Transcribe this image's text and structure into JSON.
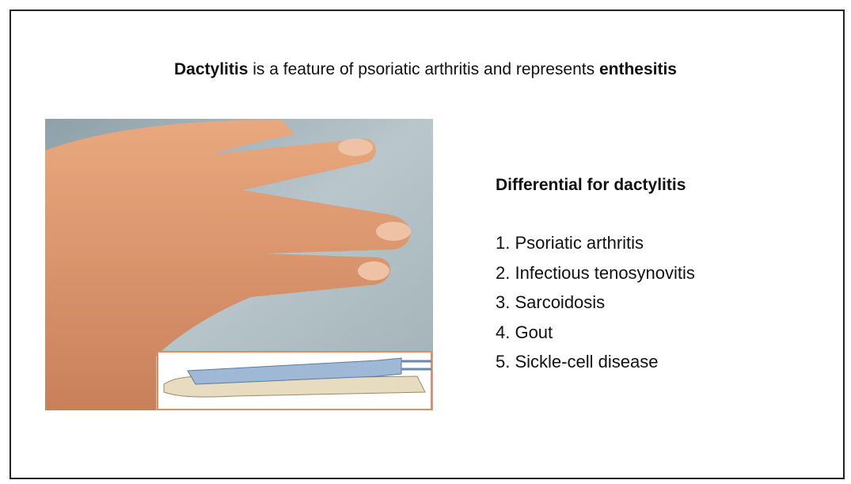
{
  "slide": {
    "title": {
      "term": "Dactylitis",
      "middle": " is a feature of psoriatic arthritis and represents ",
      "emphasis": "enthesitis"
    },
    "differential": {
      "heading": "Differential for dactylitis",
      "items": [
        "1. Psoriatic arthritis",
        "2. Infectious tenosynovitis",
        "3. Sarcoidosis",
        "4. Gout",
        "5. Sickle-cell disease"
      ]
    }
  }
}
